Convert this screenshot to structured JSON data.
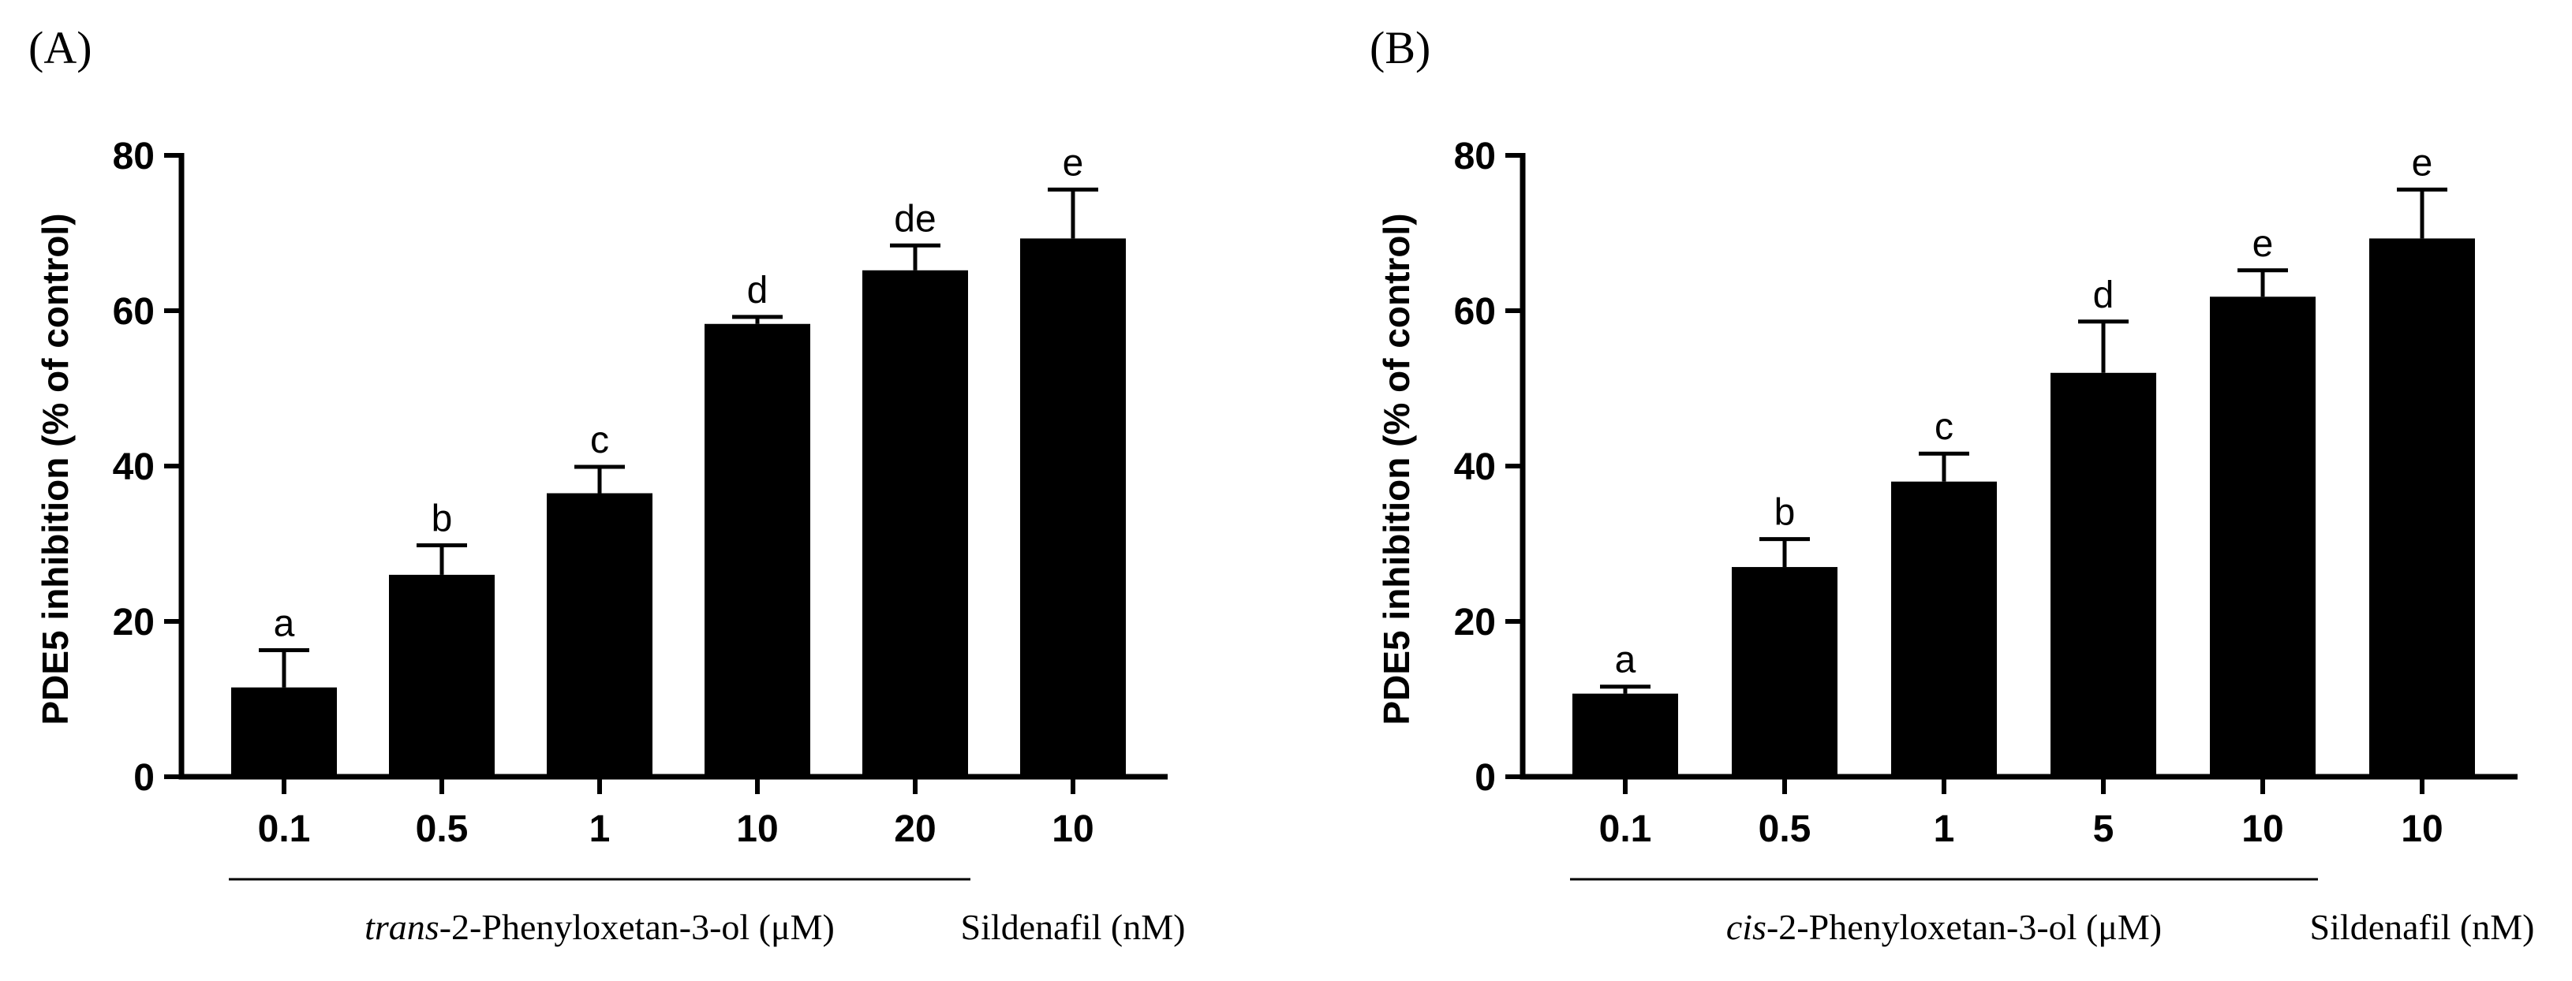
{
  "chart_data": [
    {
      "panel": "(A)",
      "type": "bar",
      "ylabel": "PDE5 inhibition (% of control)",
      "ylim": [
        0,
        80
      ],
      "yticks": [
        "0",
        "20",
        "40",
        "60",
        "80"
      ],
      "categories": [
        "0.1",
        "0.5",
        "1",
        "10",
        "20",
        "10"
      ],
      "values": [
        11.5,
        26,
        36.5,
        58.3,
        65.2,
        69.3
      ],
      "errors": [
        4.8,
        3.8,
        3.4,
        0.9,
        3.2,
        6.3
      ],
      "letters": [
        "a",
        "b",
        "c",
        "d",
        "de",
        "e"
      ],
      "groups": [
        {
          "label_italic": "trans",
          "label_rest": "-2-Phenyloxetan-3-ol (μM)",
          "from": 0,
          "to": 4
        },
        {
          "label_rest": "Sildenafil (nM)",
          "from": 5,
          "to": 5
        }
      ]
    },
    {
      "panel": "(B)",
      "type": "bar",
      "ylabel": "PDE5 inhibition (% of control)",
      "ylim": [
        0,
        80
      ],
      "yticks": [
        "0",
        "20",
        "40",
        "60",
        "80"
      ],
      "categories": [
        "0.1",
        "0.5",
        "1",
        "5",
        "10",
        "10"
      ],
      "values": [
        10.7,
        27,
        38,
        52,
        61.8,
        69.3
      ],
      "errors": [
        0.9,
        3.6,
        3.6,
        6.6,
        3.4,
        6.3
      ],
      "letters": [
        "a",
        "b",
        "c",
        "d",
        "e",
        "e"
      ],
      "groups": [
        {
          "label_italic": "cis",
          "label_rest": "-2-Phenyloxetan-3-ol (μM)",
          "from": 0,
          "to": 4
        },
        {
          "label_rest": "Sildenafil (nM)",
          "from": 5,
          "to": 5
        }
      ]
    }
  ]
}
